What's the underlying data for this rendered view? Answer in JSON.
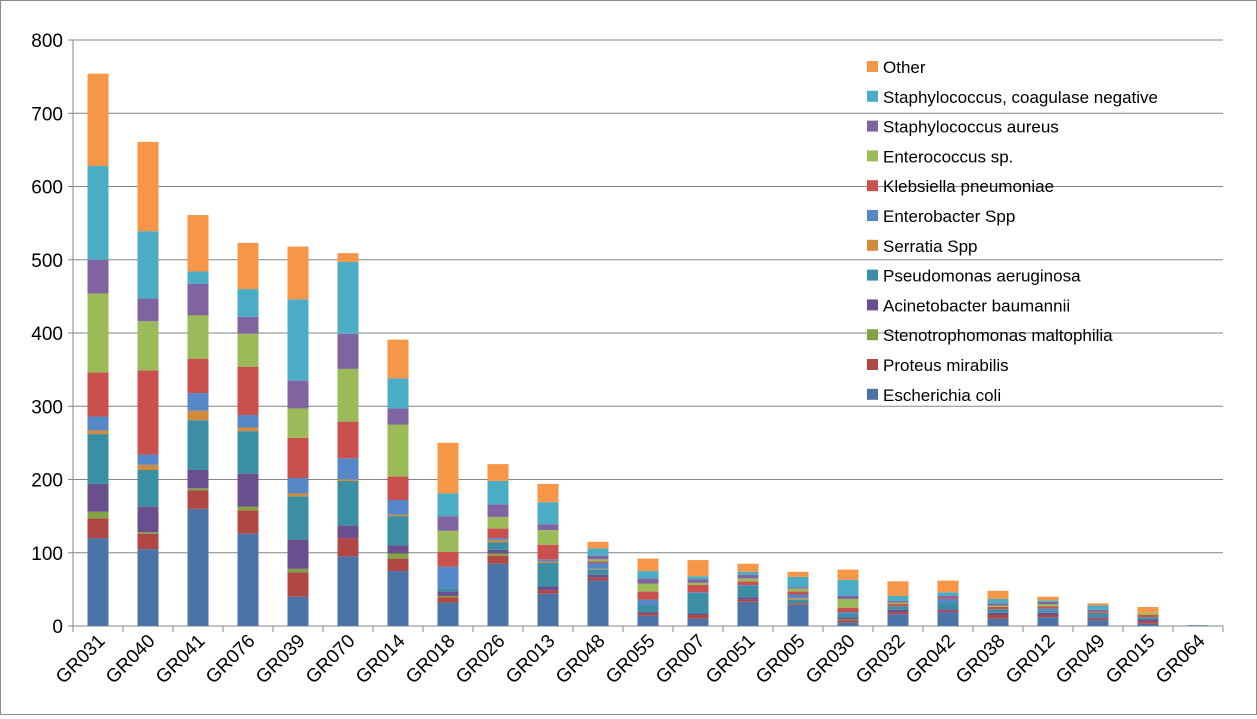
{
  "chart_data": {
    "type": "bar",
    "stacked": true,
    "title": "",
    "xlabel": "",
    "ylabel": "",
    "ylim": [
      0,
      800
    ],
    "yticks": [
      0,
      100,
      200,
      300,
      400,
      500,
      600,
      700,
      800
    ],
    "grid": true,
    "legend_position": "top-right",
    "categories": [
      "GR031",
      "GR040",
      "GR041",
      "GR076",
      "GR039",
      "GR070",
      "GR014",
      "GR018",
      "GR026",
      "GR013",
      "GR048",
      "GR055",
      "GR007",
      "GR051",
      "GR005",
      "GR030",
      "GR032",
      "GR042",
      "GR038",
      "GR012",
      "GR049",
      "GR015",
      "GR064"
    ],
    "series": [
      {
        "name": "Escherichia coli",
        "color": "#4a73a8",
        "values": [
          120,
          105,
          160,
          126,
          40,
          95,
          75,
          32,
          85,
          44,
          62,
          14,
          10,
          33,
          29,
          5,
          16,
          19,
          10,
          12,
          8,
          3,
          1
        ]
      },
      {
        "name": "Proteus mirabilis",
        "color": "#b04745",
        "values": [
          27,
          21,
          25,
          32,
          33,
          25,
          17,
          7,
          11,
          5,
          4,
          3,
          5,
          3,
          2,
          3,
          3,
          2,
          5,
          3,
          2,
          3,
          0
        ]
      },
      {
        "name": "Stenotrophomonas maltophilia",
        "color": "#82a243",
        "values": [
          9,
          2,
          3,
          5,
          5,
          0,
          7,
          2,
          3,
          0,
          0,
          0,
          0,
          0,
          0,
          1,
          0,
          0,
          0,
          0,
          0,
          0,
          0
        ]
      },
      {
        "name": "Acinetobacter baumannii",
        "color": "#6a4f8e",
        "values": [
          38,
          35,
          25,
          45,
          40,
          17,
          11,
          6,
          5,
          5,
          4,
          2,
          2,
          3,
          0,
          3,
          3,
          2,
          3,
          3,
          2,
          3,
          0
        ]
      },
      {
        "name": "Pseudomonas aeruginosa",
        "color": "#3b8fa4",
        "values": [
          68,
          50,
          68,
          58,
          59,
          61,
          40,
          4,
          10,
          32,
          7,
          9,
          28,
          16,
          5,
          5,
          5,
          9,
          5,
          3,
          6,
          3,
          0
        ]
      },
      {
        "name": "Serratia Spp",
        "color": "#d38a3c",
        "values": [
          5,
          7,
          13,
          5,
          4,
          2,
          2,
          0,
          3,
          2,
          1,
          0,
          0,
          0,
          2,
          0,
          0,
          0,
          0,
          0,
          0,
          0,
          0
        ]
      },
      {
        "name": "Enterobacter Spp",
        "color": "#5587c9",
        "values": [
          19,
          14,
          24,
          17,
          21,
          29,
          20,
          30,
          3,
          3,
          8,
          8,
          1,
          1,
          5,
          2,
          0,
          5,
          0,
          3,
          0,
          0,
          0
        ]
      },
      {
        "name": "Klebsiella pneumoniae",
        "color": "#c9504d",
        "values": [
          60,
          115,
          47,
          66,
          55,
          50,
          32,
          20,
          13,
          20,
          2,
          11,
          10,
          5,
          4,
          6,
          3,
          2,
          3,
          3,
          2,
          3,
          0
        ]
      },
      {
        "name": "Enterococcus sp.",
        "color": "#9bbb59",
        "values": [
          108,
          67,
          59,
          45,
          40,
          72,
          71,
          29,
          16,
          20,
          3,
          11,
          3,
          4,
          4,
          12,
          2,
          0,
          2,
          3,
          0,
          3,
          0
        ]
      },
      {
        "name": "Staphylococcus aureus",
        "color": "#8064a2",
        "values": [
          46,
          31,
          43,
          23,
          38,
          48,
          22,
          20,
          17,
          8,
          5,
          7,
          5,
          5,
          2,
          4,
          2,
          2,
          3,
          3,
          2,
          0,
          0
        ]
      },
      {
        "name": "Staphylococcus, coagulase negative",
        "color": "#4bacc6",
        "values": [
          128,
          92,
          17,
          38,
          111,
          98,
          41,
          31,
          32,
          30,
          10,
          10,
          4,
          4,
          14,
          22,
          7,
          5,
          6,
          2,
          6,
          0,
          0
        ]
      },
      {
        "name": "Other",
        "color": "#f79646",
        "values": [
          126,
          122,
          77,
          63,
          72,
          12,
          53,
          69,
          23,
          25,
          9,
          17,
          22,
          11,
          7,
          14,
          20,
          16,
          11,
          5,
          3,
          8,
          0
        ]
      }
    ]
  }
}
